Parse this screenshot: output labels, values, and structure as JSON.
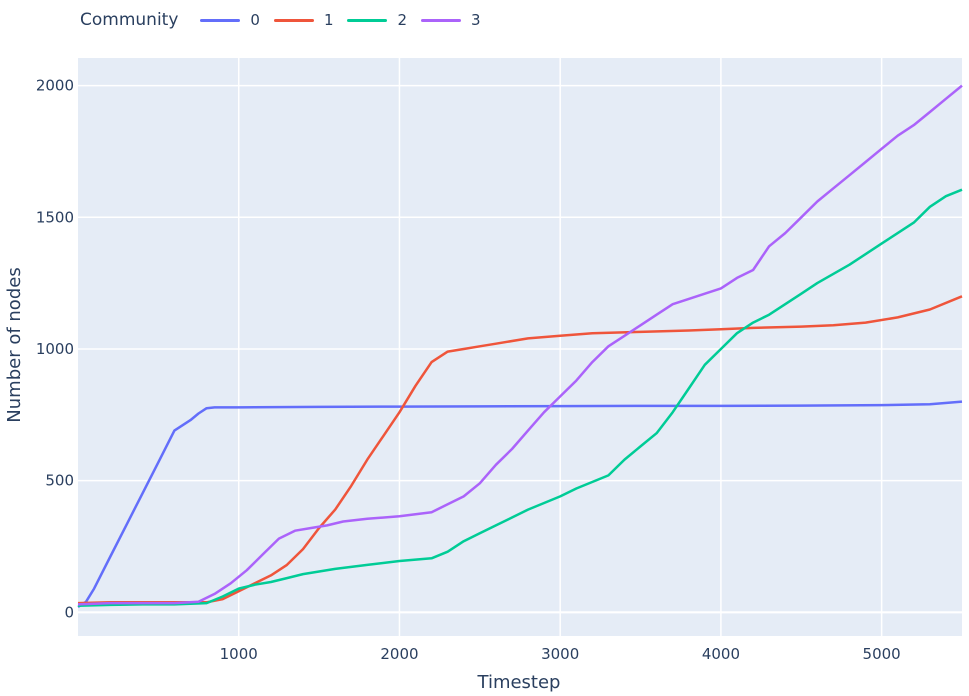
{
  "legend": {
    "title": "Community",
    "items": [
      {
        "label": "0",
        "color": "#636efa"
      },
      {
        "label": "1",
        "color": "#ef553b"
      },
      {
        "label": "2",
        "color": "#00cc96"
      },
      {
        "label": "3",
        "color": "#ab63fa"
      }
    ]
  },
  "chart_data": {
    "type": "line",
    "title": "",
    "xlabel": "Timestep",
    "ylabel": "Number of nodes",
    "xlim": [
      0,
      5500
    ],
    "ylim": [
      -90,
      2105
    ],
    "xticks": [
      1000,
      2000,
      3000,
      4000,
      5000
    ],
    "xtick_labels": [
      "1000",
      "2000",
      "3000",
      "4000",
      "5000"
    ],
    "yticks": [
      0,
      500,
      1000,
      1500,
      2000
    ],
    "ytick_labels": [
      "0",
      "500",
      "1000",
      "1500",
      "2000"
    ],
    "grid": true,
    "legend_position": "top-left, horizontal",
    "background_color": "#e5ecf6",
    "series": [
      {
        "name": "0",
        "color": "#636efa",
        "x": [
          0,
          50,
          100,
          200,
          300,
          400,
          500,
          600,
          700,
          750,
          800,
          850,
          1000,
          1500,
          2000,
          2500,
          3000,
          3500,
          4000,
          4500,
          5000,
          5300,
          5500
        ],
        "y": [
          20,
          40,
          90,
          210,
          330,
          450,
          570,
          690,
          730,
          755,
          775,
          778,
          778,
          780,
          781,
          782,
          783,
          784,
          784,
          785,
          787,
          790,
          800
        ]
      },
      {
        "name": "1",
        "color": "#ef553b",
        "x": [
          0,
          200,
          400,
          600,
          800,
          900,
          1000,
          1100,
          1200,
          1300,
          1400,
          1500,
          1600,
          1700,
          1800,
          1900,
          2000,
          2100,
          2200,
          2300,
          2400,
          2500,
          2600,
          2800,
          3000,
          3200,
          3500,
          3800,
          4000,
          4200,
          4500,
          4700,
          4900,
          5100,
          5300,
          5500
        ],
        "y": [
          35,
          38,
          38,
          38,
          38,
          50,
          80,
          110,
          140,
          180,
          240,
          320,
          390,
          480,
          580,
          670,
          760,
          860,
          950,
          990,
          1000,
          1010,
          1020,
          1040,
          1050,
          1060,
          1065,
          1070,
          1075,
          1080,
          1085,
          1090,
          1100,
          1120,
          1150,
          1200
        ]
      },
      {
        "name": "2",
        "color": "#00cc96",
        "x": [
          0,
          200,
          400,
          600,
          800,
          900,
          1000,
          1100,
          1200,
          1300,
          1400,
          1500,
          1600,
          1800,
          2000,
          2200,
          2300,
          2400,
          2500,
          2600,
          2700,
          2800,
          3000,
          3100,
          3300,
          3400,
          3500,
          3600,
          3700,
          3800,
          3900,
          4000,
          4100,
          4200,
          4300,
          4400,
          4500,
          4600,
          4800,
          5000,
          5200,
          5300,
          5400,
          5500
        ],
        "y": [
          25,
          28,
          30,
          30,
          35,
          60,
          90,
          105,
          115,
          130,
          145,
          155,
          165,
          180,
          195,
          205,
          230,
          270,
          300,
          330,
          360,
          390,
          440,
          470,
          520,
          580,
          630,
          680,
          760,
          850,
          940,
          1000,
          1060,
          1100,
          1130,
          1170,
          1210,
          1250,
          1320,
          1400,
          1480,
          1540,
          1580,
          1605
        ]
      },
      {
        "name": "3",
        "color": "#ab63fa",
        "x": [
          0,
          200,
          400,
          600,
          750,
          850,
          950,
          1050,
          1150,
          1250,
          1350,
          1450,
          1550,
          1650,
          1800,
          2000,
          2200,
          2300,
          2400,
          2500,
          2600,
          2700,
          2800,
          2900,
          3000,
          3100,
          3200,
          3300,
          3400,
          3500,
          3600,
          3700,
          3800,
          3900,
          4000,
          4100,
          4200,
          4300,
          4400,
          4500,
          4600,
          4700,
          4800,
          4900,
          5000,
          5100,
          5200,
          5300,
          5400,
          5500
        ],
        "y": [
          30,
          35,
          35,
          35,
          40,
          70,
          110,
          160,
          220,
          280,
          310,
          320,
          330,
          345,
          355,
          365,
          380,
          410,
          440,
          490,
          560,
          620,
          690,
          760,
          820,
          880,
          950,
          1010,
          1050,
          1090,
          1130,
          1170,
          1190,
          1210,
          1230,
          1270,
          1300,
          1390,
          1440,
          1500,
          1560,
          1610,
          1660,
          1710,
          1760,
          1810,
          1850,
          1900,
          1950,
          2000
        ]
      }
    ]
  }
}
